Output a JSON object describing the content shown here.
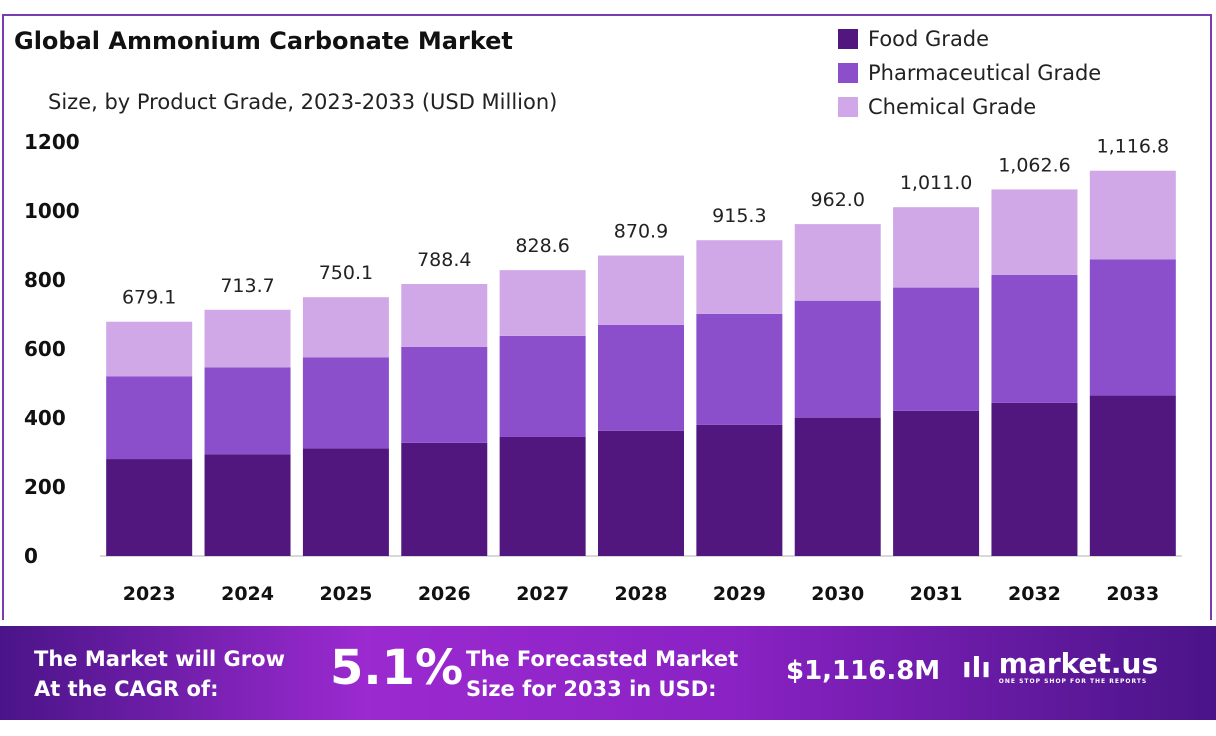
{
  "chart_data": {
    "type": "bar",
    "stacked": true,
    "title": "Global Ammonium Carbonate Market",
    "subtitle": "Size, by Product Grade, 2023-2033 (USD Million)",
    "xlabel": "",
    "ylabel": "",
    "ylim": [
      0,
      1200
    ],
    "yticks": [
      0,
      200,
      400,
      600,
      800,
      1000,
      1200
    ],
    "categories": [
      "2023",
      "2024",
      "2025",
      "2026",
      "2027",
      "2028",
      "2029",
      "2030",
      "2031",
      "2032",
      "2033"
    ],
    "series": [
      {
        "name": "Food Grade",
        "color": "#51177f",
        "values": [
          281,
          295,
          312,
          328,
          345,
          363,
          380,
          401,
          421,
          444,
          465
        ]
      },
      {
        "name": "Pharmaceutical Grade",
        "color": "#8b4fcc",
        "values": [
          240,
          252,
          264,
          278,
          293,
          307,
          322,
          339,
          357,
          371,
          395
        ]
      },
      {
        "name": "Chemical Grade",
        "color": "#d0a8e8",
        "values": [
          158.1,
          166.7,
          174.1,
          182.4,
          190.6,
          200.9,
          213.3,
          222.0,
          233.0,
          247.6,
          256.8
        ]
      }
    ],
    "totals": [
      "679.1",
      "713.7",
      "750.1",
      "788.4",
      "828.6",
      "870.9",
      "915.3",
      "962.0",
      "1,011.0",
      "1,062.6",
      "1,116.8"
    ],
    "legend_position": "top-right",
    "grid": false
  },
  "banner": {
    "grow_text_1": "The Market will Grow",
    "grow_text_2": "At the CAGR of:",
    "cagr": "5.1%",
    "forecast_text_1": "The Forecasted Market",
    "forecast_text_2": "Size for 2033 in USD:",
    "forecast_value": "$1,116.8M",
    "logo_name": "market.us",
    "logo_tagline": "ONE STOP SHOP FOR THE REPORTS"
  }
}
